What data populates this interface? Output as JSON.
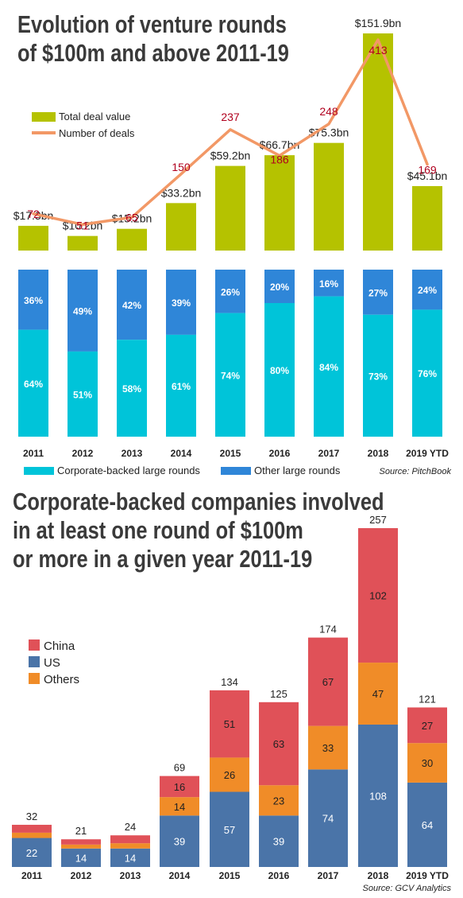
{
  "chart_data": [
    {
      "type": "bar",
      "title": "Evolution of venture rounds of $100m and above 2011-19",
      "categories": [
        "2011",
        "2012",
        "2013",
        "2014",
        "2015",
        "2016",
        "2017",
        "2018",
        "2019 YTD"
      ],
      "series": [
        {
          "name": "Total deal value",
          "values": [
            17.3,
            10.2,
            15.2,
            33.2,
            59.2,
            66.7,
            75.3,
            151.9,
            45.1
          ],
          "labels": [
            "$17.3bn",
            "$10.2bn",
            "$15.2bn",
            "$33.2bn",
            "$59.2bn",
            "$66.7bn",
            "$75.3bn",
            "$151.9bn",
            "$45.1bn"
          ]
        },
        {
          "name": "Number of deals",
          "type": "line",
          "values": [
            72,
            51,
            65,
            150,
            237,
            186,
            248,
            413,
            169
          ]
        }
      ],
      "colors": {
        "deal_value": "#b5c200",
        "deals_line": "#f29866",
        "deals_text": "#b0001e"
      }
    },
    {
      "type": "bar",
      "stacked": true,
      "categories": [
        "2011",
        "2012",
        "2013",
        "2014",
        "2015",
        "2016",
        "2017",
        "2018",
        "2019 YTD"
      ],
      "series": [
        {
          "name": "Corporate-backed large rounds",
          "values": [
            64,
            51,
            58,
            61,
            74,
            80,
            84,
            73,
            76
          ]
        },
        {
          "name": "Other large rounds",
          "values": [
            36,
            49,
            42,
            39,
            26,
            20,
            16,
            27,
            24
          ]
        }
      ],
      "unit": "%",
      "source": "Source: PitchBook",
      "colors": {
        "corporate": "#00c4d9",
        "other": "#2f86d8"
      }
    },
    {
      "type": "bar",
      "stacked": true,
      "title": "Corporate-backed companies involved in at least one round of $100m or more in a given year 2011-19",
      "categories": [
        "2011",
        "2012",
        "2013",
        "2014",
        "2015",
        "2016",
        "2017",
        "2018",
        "2019 YTD"
      ],
      "totals": [
        32,
        21,
        24,
        69,
        134,
        125,
        174,
        257,
        121
      ],
      "series": [
        {
          "name": "US",
          "values": [
            22,
            14,
            14,
            39,
            57,
            39,
            74,
            108,
            64
          ]
        },
        {
          "name": "Others",
          "values": [
            4,
            3,
            4,
            14,
            26,
            23,
            33,
            47,
            30
          ]
        },
        {
          "name": "China",
          "values": [
            6,
            4,
            6,
            16,
            51,
            63,
            67,
            102,
            27
          ]
        }
      ],
      "legend_order": [
        "China",
        "US",
        "Others"
      ],
      "source": "Source: GCV Analytics",
      "colors": {
        "China": "#e05158",
        "US": "#4a74a8",
        "Others": "#f08c28"
      }
    }
  ],
  "titles": {
    "t1": [
      "Evolution of venture rounds",
      "of $100m and above 2011-19"
    ],
    "t2": [
      "Corporate-backed companies involved",
      "in at least one round of $100m",
      "or more in a given year 2011-19"
    ]
  }
}
